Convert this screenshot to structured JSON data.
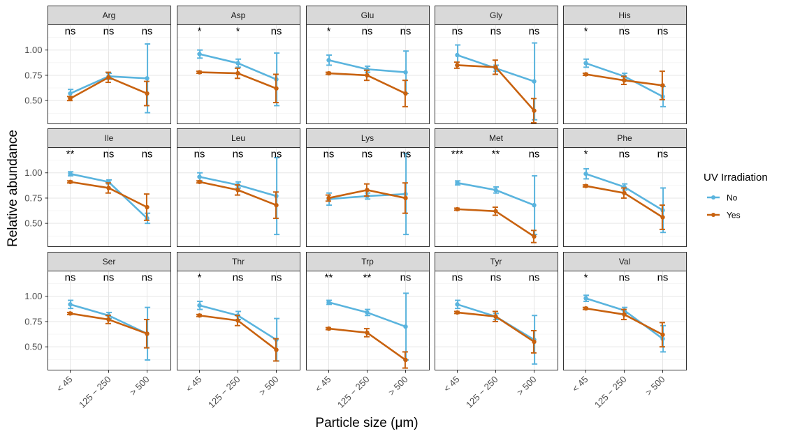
{
  "chart_data": {
    "type": "line",
    "facet_layout": "3 rows x 5 columns",
    "xlabel": "Particle size (μm)",
    "ylabel": "Relative abundance",
    "categories": [
      "< 45",
      "125 − 250",
      "> 500"
    ],
    "y_ticks": [
      0.5,
      0.75,
      1.0
    ],
    "y_tick_labels": [
      "0.50",
      "0.75",
      "1.00"
    ],
    "ylim": [
      0.27,
      1.25
    ],
    "grid": true,
    "legend": {
      "title": "UV Irradiation",
      "placement": "right",
      "entries": [
        {
          "name": "No",
          "color": "#5AB4DE"
        },
        {
          "name": "Yes",
          "color": "#C8620F"
        }
      ]
    },
    "series_order": [
      "No",
      "Yes"
    ],
    "panels": [
      {
        "name": "Arg",
        "sig": [
          "ns",
          "ns",
          "ns"
        ],
        "series": [
          {
            "name": "No",
            "values": [
              0.57,
              0.74,
              0.72
            ],
            "err": [
              0.04,
              0.03,
              0.34
            ]
          },
          {
            "name": "Yes",
            "values": [
              0.52,
              0.73,
              0.57
            ],
            "err": [
              0.02,
              0.05,
              0.12
            ]
          }
        ]
      },
      {
        "name": "Asp",
        "sig": [
          "*",
          "*",
          "ns"
        ],
        "series": [
          {
            "name": "No",
            "values": [
              0.96,
              0.87,
              0.71
            ],
            "err": [
              0.04,
              0.04,
              0.26
            ]
          },
          {
            "name": "Yes",
            "values": [
              0.78,
              0.77,
              0.62
            ],
            "err": [
              0.01,
              0.05,
              0.14
            ]
          }
        ]
      },
      {
        "name": "Glu",
        "sig": [
          "*",
          "ns",
          "ns"
        ],
        "series": [
          {
            "name": "No",
            "values": [
              0.9,
              0.81,
              0.78
            ],
            "err": [
              0.05,
              0.03,
              0.21
            ]
          },
          {
            "name": "Yes",
            "values": [
              0.77,
              0.75,
              0.57
            ],
            "err": [
              0.01,
              0.05,
              0.13
            ]
          }
        ]
      },
      {
        "name": "Gly",
        "sig": [
          "ns",
          "ns",
          "ns"
        ],
        "series": [
          {
            "name": "No",
            "values": [
              0.95,
              0.82,
              0.69
            ],
            "err": [
              0.1,
              0.03,
              0.38
            ]
          },
          {
            "name": "Yes",
            "values": [
              0.85,
              0.83,
              0.4
            ],
            "err": [
              0.03,
              0.07,
              0.12
            ]
          }
        ]
      },
      {
        "name": "His",
        "sig": [
          "*",
          "ns",
          "ns"
        ],
        "series": [
          {
            "name": "No",
            "values": [
              0.87,
              0.74,
              0.54
            ],
            "err": [
              0.04,
              0.03,
              0.1
            ]
          },
          {
            "name": "Yes",
            "values": [
              0.76,
              0.7,
              0.65
            ],
            "err": [
              0.01,
              0.04,
              0.14
            ]
          }
        ]
      },
      {
        "name": "Ile",
        "sig": [
          "**",
          "ns",
          "ns"
        ],
        "series": [
          {
            "name": "No",
            "values": [
              0.99,
              0.91,
              0.55
            ],
            "err": [
              0.02,
              0.02,
              0.05
            ]
          },
          {
            "name": "Yes",
            "values": [
              0.91,
              0.85,
              0.66
            ],
            "err": [
              0.01,
              0.05,
              0.13
            ]
          }
        ]
      },
      {
        "name": "Leu",
        "sig": [
          "ns",
          "ns",
          "ns"
        ],
        "series": [
          {
            "name": "No",
            "values": [
              0.96,
              0.88,
              0.77
            ],
            "err": [
              0.04,
              0.03,
              0.38
            ]
          },
          {
            "name": "Yes",
            "values": [
              0.91,
              0.83,
              0.68
            ],
            "err": [
              0.01,
              0.05,
              0.13
            ]
          }
        ]
      },
      {
        "name": "Lys",
        "sig": [
          "ns",
          "ns",
          "ns"
        ],
        "series": [
          {
            "name": "No",
            "values": [
              0.74,
              0.77,
              0.79
            ],
            "err": [
              0.06,
              0.03,
              0.4
            ]
          },
          {
            "name": "Yes",
            "values": [
              0.75,
              0.83,
              0.75
            ],
            "err": [
              0.03,
              0.06,
              0.15
            ]
          }
        ]
      },
      {
        "name": "Met",
        "sig": [
          "***",
          "**",
          "ns"
        ],
        "series": [
          {
            "name": "No",
            "values": [
              0.9,
              0.83,
              0.68
            ],
            "err": [
              0.02,
              0.03,
              0.29
            ]
          },
          {
            "name": "Yes",
            "values": [
              0.64,
              0.62,
              0.37
            ],
            "err": [
              0.01,
              0.04,
              0.06
            ]
          }
        ]
      },
      {
        "name": "Phe",
        "sig": [
          "*",
          "ns",
          "ns"
        ],
        "series": [
          {
            "name": "No",
            "values": [
              0.99,
              0.86,
              0.63
            ],
            "err": [
              0.05,
              0.03,
              0.22
            ]
          },
          {
            "name": "Yes",
            "values": [
              0.87,
              0.8,
              0.56
            ],
            "err": [
              0.01,
              0.05,
              0.12
            ]
          }
        ]
      },
      {
        "name": "Ser",
        "sig": [
          "ns",
          "ns",
          "ns"
        ],
        "series": [
          {
            "name": "No",
            "values": [
              0.92,
              0.81,
              0.63
            ],
            "err": [
              0.04,
              0.03,
              0.26
            ]
          },
          {
            "name": "Yes",
            "values": [
              0.83,
              0.77,
              0.63
            ],
            "err": [
              0.01,
              0.04,
              0.14
            ]
          }
        ]
      },
      {
        "name": "Thr",
        "sig": [
          "*",
          "ns",
          "ns"
        ],
        "series": [
          {
            "name": "No",
            "values": [
              0.91,
              0.81,
              0.57
            ],
            "err": [
              0.04,
              0.04,
              0.21
            ]
          },
          {
            "name": "Yes",
            "values": [
              0.81,
              0.76,
              0.47
            ],
            "err": [
              0.01,
              0.05,
              0.11
            ]
          }
        ]
      },
      {
        "name": "Trp",
        "sig": [
          "**",
          "**",
          "ns"
        ],
        "series": [
          {
            "name": "No",
            "values": [
              0.94,
              0.84,
              0.7
            ],
            "err": [
              0.02,
              0.03,
              0.33
            ]
          },
          {
            "name": "Yes",
            "values": [
              0.68,
              0.64,
              0.37
            ],
            "err": [
              0.01,
              0.04,
              0.08
            ]
          }
        ]
      },
      {
        "name": "Tyr",
        "sig": [
          "ns",
          "ns",
          "ns"
        ],
        "series": [
          {
            "name": "No",
            "values": [
              0.92,
              0.8,
              0.57
            ],
            "err": [
              0.04,
              0.03,
              0.24
            ]
          },
          {
            "name": "Yes",
            "values": [
              0.84,
              0.8,
              0.55
            ],
            "err": [
              0.01,
              0.05,
              0.11
            ]
          }
        ]
      },
      {
        "name": "Val",
        "sig": [
          "*",
          "ns",
          "ns"
        ],
        "series": [
          {
            "name": "No",
            "values": [
              0.98,
              0.86,
              0.58
            ],
            "err": [
              0.03,
              0.03,
              0.13
            ]
          },
          {
            "name": "Yes",
            "values": [
              0.88,
              0.82,
              0.62
            ],
            "err": [
              0.01,
              0.05,
              0.12
            ]
          }
        ]
      }
    ]
  }
}
